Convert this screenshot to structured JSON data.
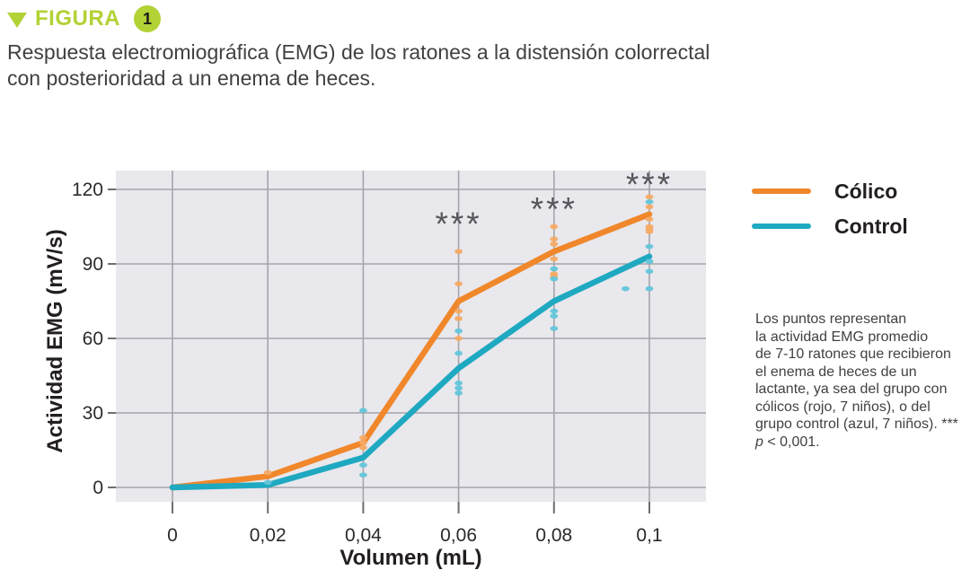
{
  "header": {
    "label": "FIGURA",
    "number": "1",
    "title_lines": [
      "Respuesta electromiográfica (EMG) de los ratones a la distensión colorrectal",
      "con posterioridad a un enema de heces."
    ]
  },
  "legend": [
    {
      "label": "Cólico",
      "color": "#f0872b"
    },
    {
      "label": "Control",
      "color": "#1fa9c1"
    }
  ],
  "caption": {
    "lines": [
      "Los puntos representan",
      "la actividad EMG promedio",
      "de 7-10 ratones que recibieron",
      "el enema de heces de un",
      "lactante, ya sea del grupo con",
      "cólicos (rojo, 7 niños), o del",
      "grupo control (azul, 7 niños). ***"
    ],
    "p_italic": "p",
    "p_rest": " < 0,001."
  },
  "colors": {
    "accent_green": "#b2d235",
    "colico_line": "#f0872b",
    "colico_point": "#f5aa64",
    "control_line": "#1fa9c1",
    "control_point": "#62c6da",
    "plot_bg": "#e9e8ed",
    "grid": "#a6a4ab",
    "tick": "#6d6e71",
    "tick_label": "#2b2b2b",
    "axis_title": "#231f20",
    "annotation": "#55555a",
    "text_dark": "#414042"
  },
  "chart_data": {
    "type": "line",
    "title": "",
    "xlabel": "Volumen (mL)",
    "ylabel": "Actividad EMG  (mV/s)",
    "xlim": [
      0,
      0.1
    ],
    "ylim": [
      0,
      120
    ],
    "grid": true,
    "legend_position": "top-right",
    "xticks": [
      {
        "v": 0,
        "label": "0"
      },
      {
        "v": 0.02,
        "label": "0,02"
      },
      {
        "v": 0.04,
        "label": "0,04"
      },
      {
        "v": 0.06,
        "label": "0,06"
      },
      {
        "v": 0.08,
        "label": "0,08"
      },
      {
        "v": 0.1,
        "label": "0,1"
      }
    ],
    "yticks": [
      {
        "v": 0,
        "label": "0"
      },
      {
        "v": 30,
        "label": "30"
      },
      {
        "v": 60,
        "label": "60"
      },
      {
        "v": 90,
        "label": "90"
      },
      {
        "v": 120,
        "label": "120"
      }
    ],
    "series": [
      {
        "name": "Cólico",
        "mean": [
          [
            0,
            0
          ],
          [
            0.02,
            4.5
          ],
          [
            0.04,
            18
          ],
          [
            0.06,
            75
          ],
          [
            0.08,
            95
          ],
          [
            0.1,
            110
          ]
        ],
        "points": [
          [
            0.02,
            6
          ],
          [
            0.04,
            20
          ],
          [
            0.04,
            18
          ],
          [
            0.04,
            16
          ],
          [
            0.06,
            95
          ],
          [
            0.06,
            82
          ],
          [
            0.06,
            71
          ],
          [
            0.06,
            68
          ],
          [
            0.06,
            60
          ],
          [
            0.08,
            105
          ],
          [
            0.08,
            100
          ],
          [
            0.08,
            98
          ],
          [
            0.08,
            92
          ],
          [
            0.08,
            86
          ],
          [
            0.08,
            85
          ],
          [
            0.1,
            117
          ],
          [
            0.1,
            113
          ],
          [
            0.1,
            108
          ],
          [
            0.1,
            105
          ],
          [
            0.1,
            104
          ],
          [
            0.1,
            103
          ]
        ]
      },
      {
        "name": "Control",
        "mean": [
          [
            0,
            0
          ],
          [
            0.02,
            1
          ],
          [
            0.04,
            12
          ],
          [
            0.06,
            48
          ],
          [
            0.08,
            75
          ],
          [
            0.1,
            93
          ]
        ],
        "points": [
          [
            0.02,
            2
          ],
          [
            0.04,
            31
          ],
          [
            0.04,
            9
          ],
          [
            0.04,
            5
          ],
          [
            0.06,
            63
          ],
          [
            0.06,
            54
          ],
          [
            0.06,
            42
          ],
          [
            0.06,
            40
          ],
          [
            0.06,
            38
          ],
          [
            0.08,
            88
          ],
          [
            0.08,
            84
          ],
          [
            0.08,
            71
          ],
          [
            0.08,
            69
          ],
          [
            0.08,
            64
          ],
          [
            0.1,
            115
          ],
          [
            0.1,
            97
          ],
          [
            0.1,
            91
          ],
          [
            0.1,
            87
          ],
          [
            0.1,
            80
          ],
          [
            0.095,
            80
          ]
        ]
      }
    ],
    "annotations": [
      {
        "x": 0.06,
        "y": 108,
        "text": "***"
      },
      {
        "x": 0.08,
        "y": 114,
        "text": "***"
      },
      {
        "x": 0.1,
        "y": 124,
        "text": "***"
      }
    ]
  }
}
